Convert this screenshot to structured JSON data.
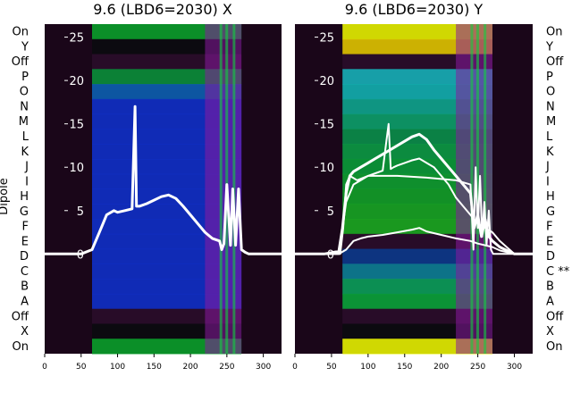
{
  "chart_data": [
    {
      "type": "heatmap",
      "title": "9.6 (LBD6=2030) X",
      "ylabel": "Dipole",
      "x_ticks": [
        0,
        50,
        100,
        150,
        200,
        250,
        300
      ],
      "xlim": [
        0,
        325
      ],
      "y_ticks": [
        0,
        5,
        10,
        15,
        20,
        25
      ],
      "ylim": [
        -11.5,
        26.5
      ],
      "left_labels": [
        "On",
        "Y",
        "Off",
        "P",
        "O",
        "N",
        "M",
        "L",
        "K",
        "J",
        "I",
        "H",
        "G",
        "F",
        "E",
        "D",
        "C",
        "B",
        "A",
        "Off",
        "X",
        "On"
      ],
      "right_labels": [],
      "series": [
        {
          "x": [
            0,
            50,
            65,
            75,
            85,
            95,
            100,
            110,
            120,
            124,
            126,
            130,
            140,
            150,
            160,
            170,
            180,
            190,
            200,
            210,
            220,
            230,
            240,
            243,
            246,
            250,
            255,
            258,
            262,
            266,
            270,
            275,
            280,
            300,
            325
          ],
          "y": [
            0,
            0,
            0.5,
            2.5,
            4.5,
            5.0,
            4.8,
            5.0,
            5.2,
            17,
            5.5,
            5.5,
            5.8,
            6.2,
            6.6,
            6.8,
            6.4,
            5.5,
            4.5,
            3.5,
            2.5,
            1.8,
            1.5,
            0.5,
            1.2,
            8.0,
            1.0,
            7.5,
            1.0,
            7.5,
            0.5,
            0.2,
            0,
            0,
            0
          ]
        }
      ]
    },
    {
      "type": "heatmap",
      "title": "9.6 (LBD6=2030) Y",
      "ylabel": "",
      "x_ticks": [
        0,
        50,
        100,
        150,
        200,
        250,
        300
      ],
      "xlim": [
        0,
        325
      ],
      "y_ticks": [
        0,
        5,
        10,
        15,
        20,
        25
      ],
      "ylim": [
        -11.5,
        26.5
      ],
      "left_labels": [],
      "right_labels": [
        "On",
        "Y",
        "Off",
        "P",
        "O",
        "N",
        "M",
        "L",
        "K",
        "J",
        "I",
        "H",
        "G",
        "F",
        "E",
        "D",
        "C **",
        "B",
        "A",
        "Off",
        "X",
        "On"
      ],
      "series": [
        {
          "x": [
            0,
            40,
            60,
            65,
            70,
            75,
            80,
            90,
            100,
            110,
            120,
            130,
            140,
            150,
            160,
            170,
            180,
            190,
            200,
            210,
            220,
            230,
            240,
            245,
            250,
            255,
            260,
            265,
            270,
            280,
            300,
            325
          ],
          "y": [
            0,
            0,
            0.3,
            3,
            7,
            9,
            9.5,
            10,
            10.5,
            11,
            11.5,
            12,
            12.5,
            13,
            13.5,
            13.8,
            13.2,
            12,
            11,
            10,
            9,
            8,
            7,
            3,
            4.5,
            2,
            4,
            2,
            1.5,
            0.8,
            0,
            0
          ]
        },
        {
          "x": [
            0,
            60,
            70,
            80,
            90,
            100,
            110,
            120,
            125,
            128,
            131,
            135,
            140,
            150,
            160,
            170,
            180,
            190,
            200,
            210,
            220,
            230,
            240,
            250,
            260,
            270,
            280,
            300,
            325
          ],
          "y": [
            0,
            0,
            6,
            8,
            8.5,
            9,
            9.3,
            9.6,
            13,
            15,
            9.8,
            10,
            10.2,
            10.5,
            10.8,
            11,
            10.5,
            10,
            9,
            8,
            6.5,
            5.5,
            4.5,
            3.5,
            3,
            2.5,
            1.5,
            0,
            0
          ]
        },
        {
          "x": [
            0,
            60,
            70,
            80,
            90,
            100,
            120,
            140,
            160,
            170,
            180,
            200,
            220,
            240,
            250,
            260,
            270,
            280,
            300,
            325
          ],
          "y": [
            0,
            0,
            0.5,
            1.5,
            1.8,
            2,
            2.2,
            2.5,
            2.8,
            3,
            2.6,
            2.2,
            1.8,
            1.5,
            1.2,
            1,
            0.8,
            0.4,
            0,
            0
          ]
        },
        {
          "x": [
            0,
            62,
            66,
            70,
            75,
            85,
            100,
            140,
            180,
            220,
            240,
            244,
            247,
            250,
            253,
            256,
            259,
            262,
            265,
            268,
            271,
            325
          ],
          "y": [
            0,
            0,
            3,
            8,
            9,
            8.5,
            9,
            9,
            8.8,
            8.5,
            8,
            0.5,
            10,
            3,
            9,
            2,
            6,
            1,
            5,
            0.5,
            0,
            0
          ]
        }
      ]
    }
  ]
}
